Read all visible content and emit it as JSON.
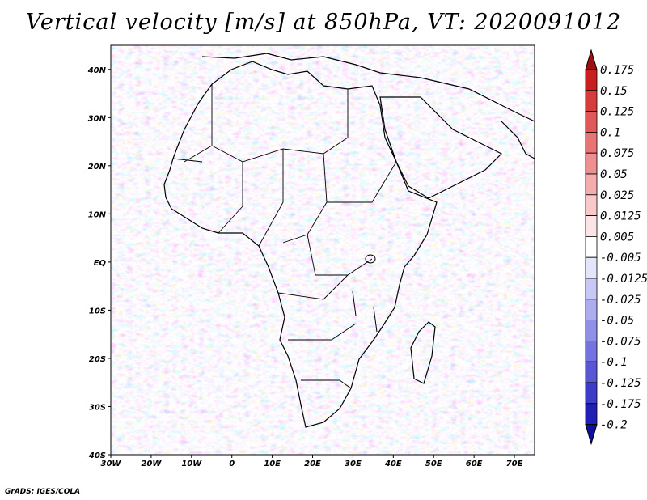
{
  "title": "Vertical velocity [m/s] at 850hPa, VT: 2020091012",
  "credit": "GrADS: IGES/COLA",
  "map": {
    "lon_range": [
      -30,
      75
    ],
    "lat_range": [
      -40,
      45
    ],
    "x_ticks": [
      "30W",
      "20W",
      "10W",
      "0",
      "10E",
      "20E",
      "30E",
      "40E",
      "50E",
      "60E",
      "70E"
    ],
    "x_tick_values": [
      -30,
      -20,
      -10,
      0,
      10,
      20,
      30,
      40,
      50,
      60,
      70
    ],
    "y_ticks": [
      "40N",
      "30N",
      "20N",
      "10N",
      "EQ",
      "10S",
      "20S",
      "30S",
      "40S"
    ],
    "y_tick_values": [
      40,
      30,
      20,
      10,
      0,
      -10,
      -20,
      -30,
      -40
    ]
  },
  "colorbar": {
    "labels": [
      "0.175",
      "0.15",
      "0.125",
      "0.1",
      "0.075",
      "0.05",
      "0.025",
      "0.0125",
      "0.005",
      "-0.005",
      "-0.0125",
      "-0.025",
      "-0.05",
      "-0.075",
      "-0.1",
      "-0.125",
      "-0.175",
      "-0.2"
    ],
    "colors": [
      "#a01010",
      "#c82020",
      "#d63c3c",
      "#e05858",
      "#e87474",
      "#ef9090",
      "#f4acac",
      "#f9c8c8",
      "#fde4e4",
      "#ffffff",
      "#e4e4fb",
      "#c8c8f5",
      "#acacef",
      "#9090e8",
      "#7474e0",
      "#5858d6",
      "#3c3cc8",
      "#2020b4",
      "#1010a0"
    ]
  }
}
